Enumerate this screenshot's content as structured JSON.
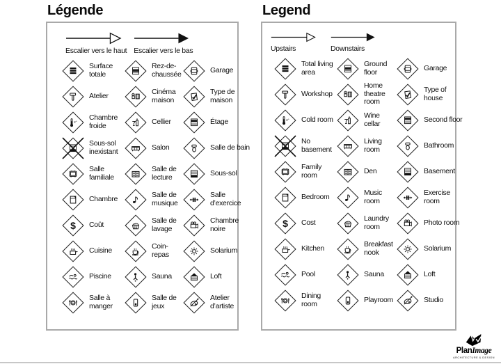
{
  "page": {
    "background": "#ffffff",
    "box_border_color": "#a9a9a9",
    "diamond_border_color": "#1c1c1c",
    "text_color": "#101010",
    "bottom_rule_color": "#c7c7c7"
  },
  "panels": [
    {
      "id": "fr",
      "title": "Légende",
      "arrows": [
        {
          "icon": "arrow-open",
          "label": "Escalier vers le haut"
        },
        {
          "icon": "arrow-filled",
          "label": "Escalier vers le bas"
        }
      ],
      "items": [
        {
          "icon": "total-living-area",
          "label": "Surface totale"
        },
        {
          "icon": "ground-floor",
          "label": "Rez-de-chaussée"
        },
        {
          "icon": "garage",
          "label": "Garage"
        },
        {
          "icon": "workshop",
          "label": "Atelier"
        },
        {
          "icon": "home-theatre",
          "label": "Cinéma maison"
        },
        {
          "icon": "type-of-house",
          "label": "Type de maison"
        },
        {
          "icon": "cold-room",
          "label": "Chambre froide"
        },
        {
          "icon": "wine-cellar",
          "label": "Cellier"
        },
        {
          "icon": "second-floor",
          "label": "Étage"
        },
        {
          "icon": "no-basement",
          "label": "Sous-sol inexistant"
        },
        {
          "icon": "living-room",
          "label": "Salon"
        },
        {
          "icon": "bathroom",
          "label": "Salle de bain"
        },
        {
          "icon": "family-room",
          "label": "Salle familiale"
        },
        {
          "icon": "den",
          "label": "Salle de lecture"
        },
        {
          "icon": "basement",
          "label": "Sous-sol"
        },
        {
          "icon": "bedroom",
          "label": "Chambre"
        },
        {
          "icon": "music-room",
          "label": "Salle de musique"
        },
        {
          "icon": "exercise-room",
          "label": "Salle d’exercice"
        },
        {
          "icon": "cost",
          "label": "Coût"
        },
        {
          "icon": "laundry-room",
          "label": "Salle de lavage"
        },
        {
          "icon": "photo-room",
          "label": "Chambre noire"
        },
        {
          "icon": "kitchen",
          "label": "Cuisine"
        },
        {
          "icon": "breakfast-nook",
          "label": "Coin-repas"
        },
        {
          "icon": "solarium",
          "label": "Solarium"
        },
        {
          "icon": "pool",
          "label": "Piscine"
        },
        {
          "icon": "sauna",
          "label": "Sauna"
        },
        {
          "icon": "loft",
          "label": "Loft"
        },
        {
          "icon": "dining-room",
          "label": "Salle à manger"
        },
        {
          "icon": "playroom",
          "label": "Salle de jeux"
        },
        {
          "icon": "studio",
          "label": "Atelier d’artiste"
        }
      ]
    },
    {
      "id": "en",
      "title": "Legend",
      "arrows": [
        {
          "icon": "arrow-open",
          "label": "Upstairs"
        },
        {
          "icon": "arrow-filled",
          "label": "Downstairs"
        }
      ],
      "items": [
        {
          "icon": "total-living-area",
          "label": "Total living area"
        },
        {
          "icon": "ground-floor",
          "label": "Ground floor"
        },
        {
          "icon": "garage",
          "label": "Garage"
        },
        {
          "icon": "workshop",
          "label": "Workshop"
        },
        {
          "icon": "home-theatre",
          "label": "Home theatre room"
        },
        {
          "icon": "type-of-house",
          "label": "Type of house"
        },
        {
          "icon": "cold-room",
          "label": "Cold room"
        },
        {
          "icon": "wine-cellar",
          "label": "Wine cellar"
        },
        {
          "icon": "second-floor",
          "label": "Second floor"
        },
        {
          "icon": "no-basement",
          "label": "No basement"
        },
        {
          "icon": "living-room",
          "label": "Living room"
        },
        {
          "icon": "bathroom",
          "label": "Bathroom"
        },
        {
          "icon": "family-room",
          "label": "Family room"
        },
        {
          "icon": "den",
          "label": "Den"
        },
        {
          "icon": "basement",
          "label": "Basement"
        },
        {
          "icon": "bedroom",
          "label": "Bedroom"
        },
        {
          "icon": "music-room",
          "label": "Music room"
        },
        {
          "icon": "exercise-room",
          "label": "Exercise room"
        },
        {
          "icon": "cost",
          "label": "Cost"
        },
        {
          "icon": "laundry-room",
          "label": "Laundry room"
        },
        {
          "icon": "photo-room",
          "label": "Photo room"
        },
        {
          "icon": "kitchen",
          "label": "Kitchen"
        },
        {
          "icon": "breakfast-nook",
          "label": "Breakfast nook"
        },
        {
          "icon": "solarium",
          "label": "Solarium"
        },
        {
          "icon": "pool",
          "label": "Pool"
        },
        {
          "icon": "sauna",
          "label": "Sauna"
        },
        {
          "icon": "loft",
          "label": "Loft"
        },
        {
          "icon": "dining-room",
          "label": "Dining room"
        },
        {
          "icon": "playroom",
          "label": "Playroom"
        },
        {
          "icon": "studio",
          "label": "Studio"
        }
      ]
    }
  ],
  "logo": {
    "part1": "Plan",
    "part2": "Image",
    "tagline": "ARCHITECTURE & DESIGN"
  }
}
